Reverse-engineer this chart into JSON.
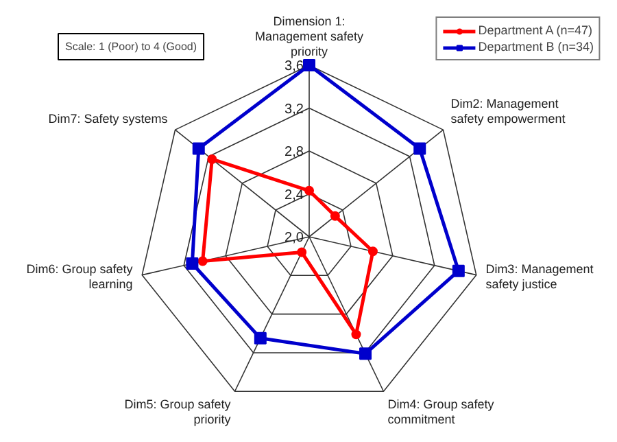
{
  "chart_data": {
    "type": "radar",
    "categories": [
      "Dimension 1:\nManagement safety\npriority",
      "Dim2: Management\nsafety empowerment",
      "Dim3: Management\nsafety justice",
      "Dim4: Group safety\ncommitment",
      "Dim5: Group safety\npriority",
      "Dim6: Group safety\nlearning",
      "Dim7: Safety systems"
    ],
    "series": [
      {
        "name": "Department A (n=47)",
        "color": "#ff0000",
        "marker": "circle",
        "values": [
          2.43,
          2.31,
          2.61,
          3.01,
          2.16,
          3.02,
          3.16
        ]
      },
      {
        "name": "Department B (n=34)",
        "color": "#0000cc",
        "marker": "square",
        "values": [
          3.6,
          3.32,
          3.43,
          3.21,
          3.05,
          3.12,
          3.32
        ]
      }
    ],
    "ylim": [
      2.0,
      3.6
    ],
    "yticks": [
      {
        "value": 2.0,
        "label": "2,0"
      },
      {
        "value": 2.4,
        "label": "2,4"
      },
      {
        "value": 2.8,
        "label": "2,8"
      },
      {
        "value": 3.2,
        "label": "3,2"
      },
      {
        "value": 3.6,
        "label": "3,6"
      }
    ],
    "grid": true,
    "legend": "top right",
    "annotations": [
      "Scale: 1 (Poor) to 4 (Good)"
    ]
  }
}
